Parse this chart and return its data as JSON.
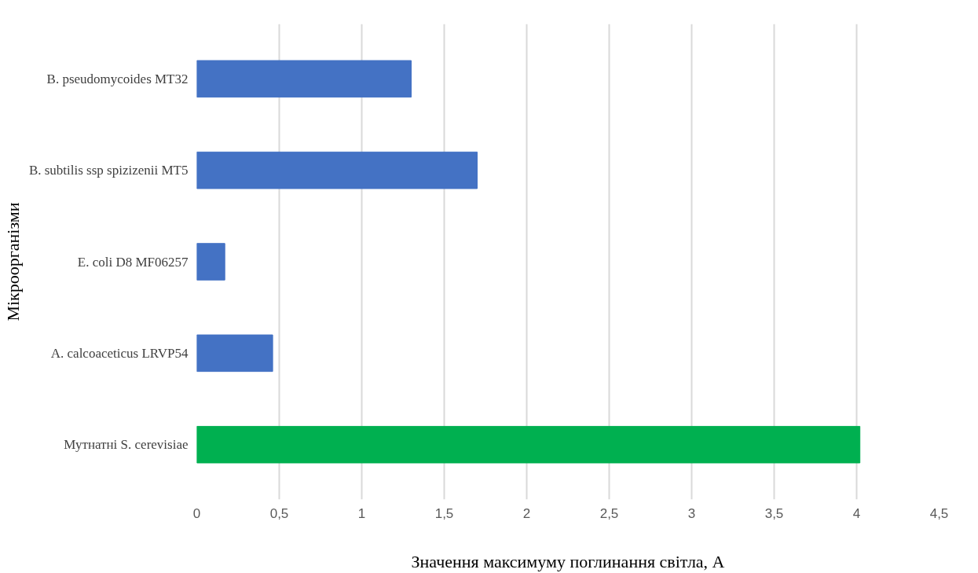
{
  "chart_data": {
    "type": "bar",
    "orientation": "horizontal",
    "xlabel": "Значення максимуму поглинання світла, А",
    "ylabel": "Мікроорганізми",
    "categories": [
      "B. pseudomycoides MT32",
      "B. subtilis ssp spizizenii MT5",
      "E. coli D8 MF06257",
      "A. calcoaceticus LRVP54",
      "Мутнатні S. cerevisiae"
    ],
    "values": [
      1.3,
      1.7,
      0.17,
      0.46,
      4.02
    ],
    "colors": [
      "#4472c4",
      "#4472c4",
      "#4472c4",
      "#4472c4",
      "#00b050"
    ],
    "xlim": [
      0,
      4.5
    ],
    "xticks": [
      0,
      {
        "value": 0.5,
        "label": "0,5"
      },
      1,
      {
        "value": 1.5,
        "label": "1,5"
      },
      2,
      {
        "value": 2.5,
        "label": "2,5"
      },
      3,
      {
        "value": 3.5,
        "label": "3,5"
      },
      4,
      {
        "value": 4.5,
        "label": "4,5"
      }
    ],
    "grid": "x"
  }
}
